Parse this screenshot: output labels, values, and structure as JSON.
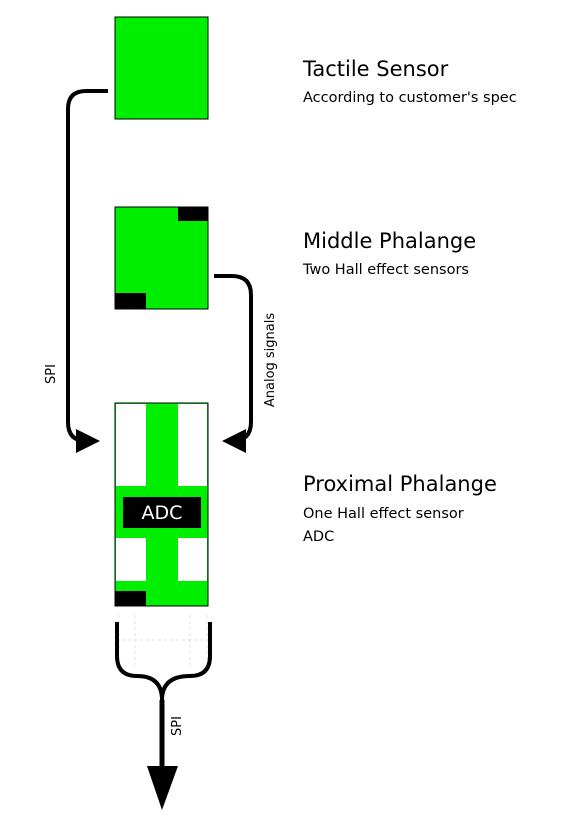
{
  "colors": {
    "board": "#00ee00",
    "chip": "#000000",
    "background": "#ffffff"
  },
  "components": {
    "tactile": {
      "title": "Tactile Sensor",
      "lines": [
        "According to customer's spec"
      ]
    },
    "middle": {
      "title": "Middle Phalange",
      "lines": [
        "Two Hall effect sensors"
      ]
    },
    "proximal": {
      "title": "Proximal Phalange",
      "lines": [
        "One Hall effect sensor",
        "ADC"
      ],
      "chip_label": "ADC"
    }
  },
  "connections": {
    "spi_left": "SPI",
    "analog": "Analog signals",
    "spi_bottom": "SPI"
  }
}
